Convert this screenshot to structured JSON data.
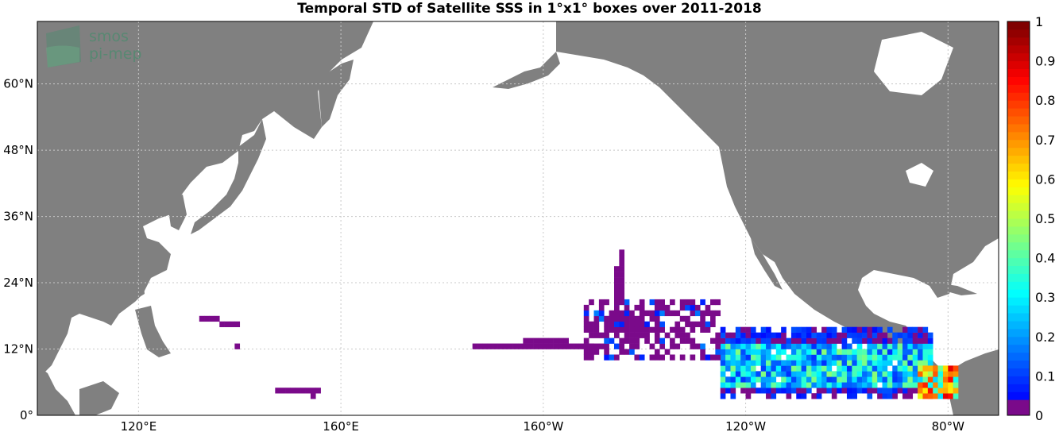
{
  "title": "Temporal STD of Satellite SSS in 1°x1° boxes over 2011-2018",
  "logo": {
    "line1": "smos",
    "line2": "pi-mep"
  },
  "map": {
    "lat_ticks": [
      {
        "value": 0,
        "label": "0°"
      },
      {
        "value": 12,
        "label": "12°N"
      },
      {
        "value": 24,
        "label": "24°N"
      },
      {
        "value": 36,
        "label": "36°N"
      },
      {
        "value": 48,
        "label": "48°N"
      },
      {
        "value": 60,
        "label": "60°N"
      }
    ],
    "lon_ticks": [
      {
        "value": 120,
        "label": "120°E"
      },
      {
        "value": 160,
        "label": "160°E"
      },
      {
        "value": -160,
        "label": "160°W"
      },
      {
        "value": -120,
        "label": "120°W"
      },
      {
        "value": -80,
        "label": "80°W"
      }
    ],
    "land_color": "#808080",
    "ocean_color": "#ffffff",
    "grid": true
  },
  "colorbar": {
    "min": 0,
    "max": 1,
    "ticks": [
      "0",
      "0.1",
      "0.2",
      "0.3",
      "0.4",
      "0.5",
      "0.6",
      "0.7",
      "0.8",
      "0.9",
      "1"
    ],
    "colormap": "jet"
  },
  "chart_data": {
    "type": "heatmap",
    "title": "Temporal STD of Satellite SSS in 1°x1° boxes over 2011-2018",
    "colorbar_range": [
      0,
      1
    ],
    "region_summary": [
      {
        "area": "Eastern tropical Pacific, 125°W-90°W, 5°N-15°N",
        "std_range": [
          0.1,
          0.45
        ]
      },
      {
        "area": "Near Panama coast, ~82°W 5°N",
        "std_range": [
          0.5,
          0.9
        ]
      },
      {
        "area": "Central Pacific 150°W-125°W, 10°N-20°N",
        "std_range": [
          0.0,
          0.2
        ]
      },
      {
        "area": "Western Pacific patches and Hawaii track",
        "std_range": [
          0.0,
          0.05
        ]
      }
    ]
  }
}
